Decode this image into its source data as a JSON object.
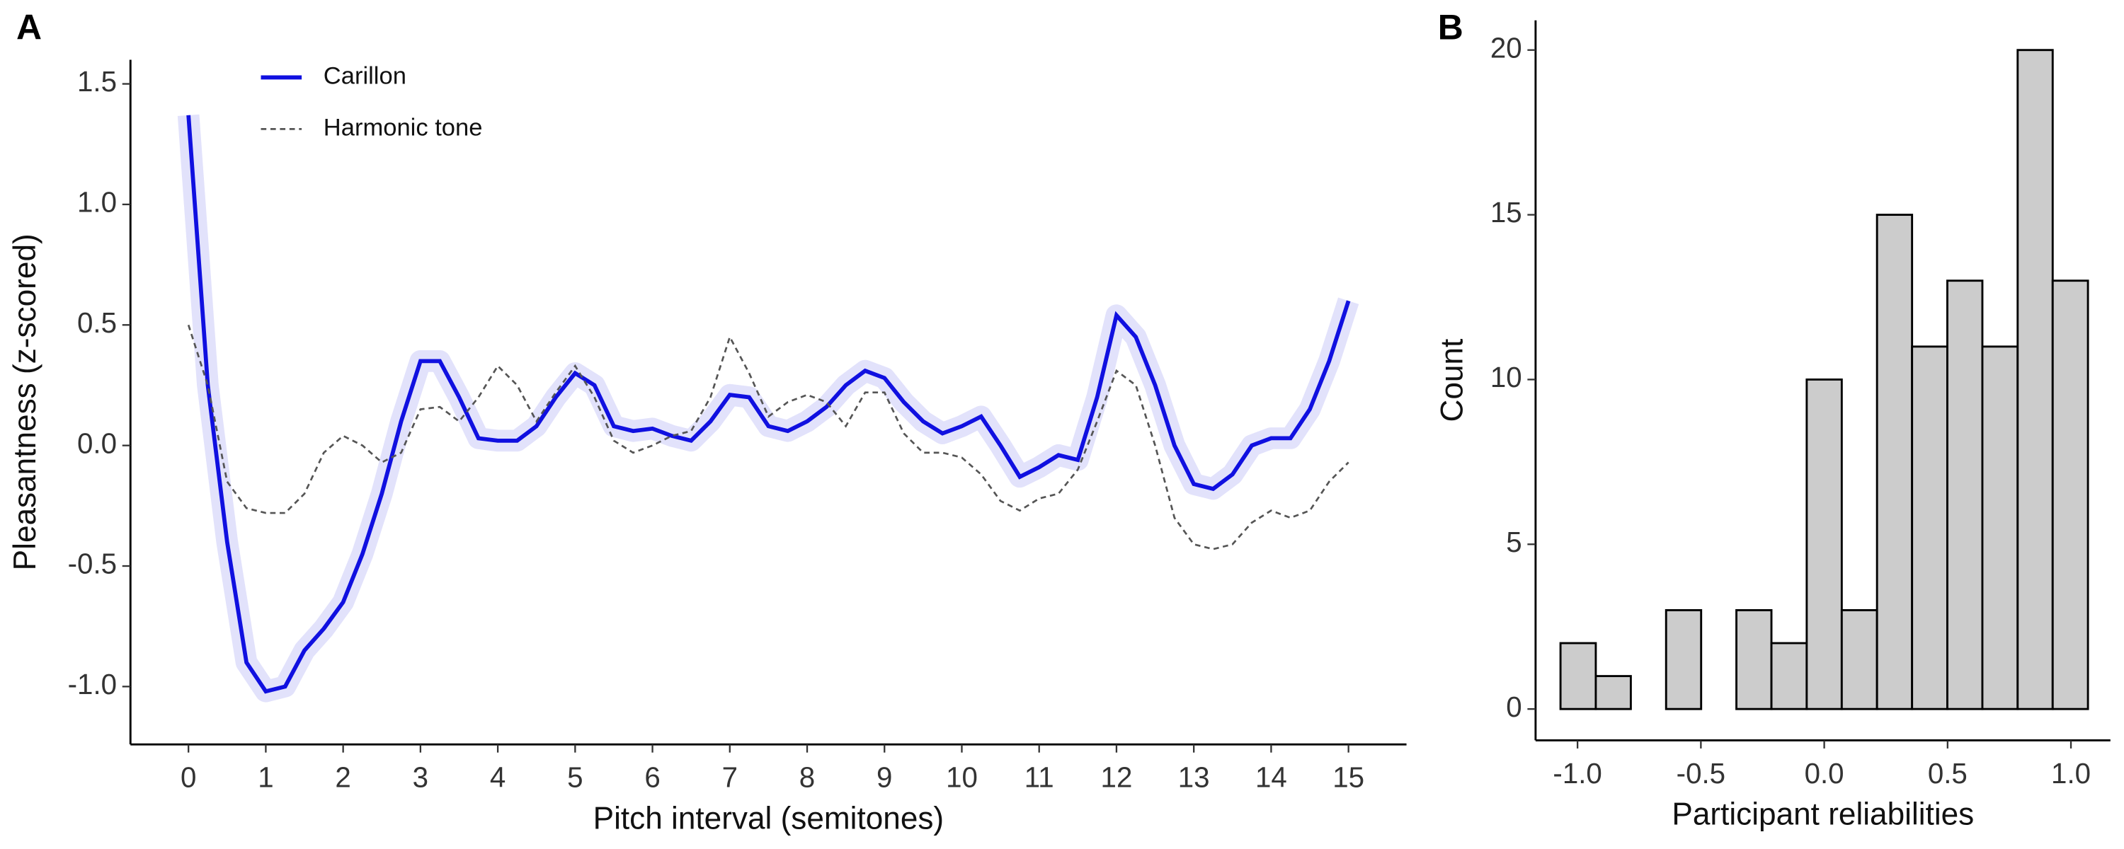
{
  "chart_data": [
    {
      "type": "line",
      "panel_label": "A",
      "x_label": "Pitch interval (semitones)",
      "y_label": "Pleasantness (z-scored)",
      "x": [
        0,
        0.25,
        0.5,
        0.75,
        1,
        1.25,
        1.5,
        1.75,
        2,
        2.25,
        2.5,
        2.75,
        3,
        3.25,
        3.5,
        3.75,
        4,
        4.25,
        4.5,
        4.75,
        5,
        5.25,
        5.5,
        5.75,
        6,
        6.25,
        6.5,
        6.75,
        7,
        7.25,
        7.5,
        7.75,
        8,
        8.25,
        8.5,
        8.75,
        9,
        9.25,
        9.5,
        9.75,
        10,
        10.25,
        10.5,
        10.75,
        11,
        11.25,
        11.5,
        11.75,
        12,
        12.25,
        12.5,
        12.75,
        13,
        13.25,
        13.5,
        13.75,
        14,
        14.25,
        14.5,
        14.75,
        15
      ],
      "series": [
        {
          "name": "Carillon",
          "color": "#1010e0",
          "linestyle": "solid",
          "ribbon": true,
          "values": [
            1.37,
            0.25,
            -0.4,
            -0.9,
            -1.02,
            -1.0,
            -0.85,
            -0.76,
            -0.65,
            -0.45,
            -0.2,
            0.1,
            0.35,
            0.35,
            0.2,
            0.03,
            0.02,
            0.02,
            0.08,
            0.2,
            0.3,
            0.25,
            0.08,
            0.06,
            0.07,
            0.04,
            0.02,
            0.1,
            0.21,
            0.2,
            0.08,
            0.06,
            0.1,
            0.16,
            0.25,
            0.31,
            0.28,
            0.18,
            0.1,
            0.05,
            0.08,
            0.12,
            0.0,
            -0.13,
            -0.09,
            -0.04,
            -0.06,
            0.2,
            0.54,
            0.45,
            0.25,
            0.0,
            -0.16,
            -0.18,
            -0.12,
            0.0,
            0.03,
            0.03,
            0.15,
            0.35,
            0.6
          ]
        },
        {
          "name": "Harmonic tone",
          "color": "#555555",
          "linestyle": "dashed",
          "ribbon": false,
          "values": [
            0.5,
            0.25,
            -0.15,
            -0.26,
            -0.28,
            -0.28,
            -0.2,
            -0.03,
            0.04,
            0.0,
            -0.07,
            -0.03,
            0.15,
            0.16,
            0.1,
            0.2,
            0.33,
            0.25,
            0.1,
            0.22,
            0.33,
            0.2,
            0.02,
            -0.03,
            0.0,
            0.04,
            0.06,
            0.2,
            0.45,
            0.3,
            0.12,
            0.18,
            0.21,
            0.18,
            0.08,
            0.22,
            0.22,
            0.05,
            -0.03,
            -0.03,
            -0.05,
            -0.12,
            -0.23,
            -0.27,
            -0.22,
            -0.2,
            -0.1,
            0.1,
            0.31,
            0.25,
            0.0,
            -0.3,
            -0.41,
            -0.43,
            -0.41,
            -0.32,
            -0.27,
            -0.3,
            -0.27,
            -0.15,
            -0.07
          ]
        }
      ],
      "xlim": [
        -0.75,
        15.75
      ],
      "xticks": [
        0,
        1,
        2,
        3,
        4,
        5,
        6,
        7,
        8,
        9,
        10,
        11,
        12,
        13,
        14,
        15
      ],
      "ylim": [
        -1.24,
        1.6
      ],
      "yticks": [
        {
          "value": -1,
          "label": "-1.0"
        },
        -0.5,
        {
          "value": 0,
          "label": "0.0"
        },
        0.5,
        {
          "value": 1,
          "label": "1.0"
        },
        1.5
      ],
      "grid": false,
      "legend": "top-left"
    },
    {
      "type": "histogram",
      "panel_label": "B",
      "x_label": "Participant reliabilities",
      "y_label": "Count",
      "bins": [
        -1.069,
        -0.926,
        -0.784,
        -0.641,
        -0.499,
        -0.356,
        -0.214,
        -0.071,
        0.071,
        0.214,
        0.356,
        0.499,
        0.641,
        0.784,
        0.926,
        1.069
      ],
      "values": [
        2,
        1,
        0,
        3,
        0,
        3,
        2,
        10,
        3,
        15,
        11,
        13,
        11,
        20,
        13
      ],
      "color": "#cccccc",
      "edgecolor": "#000000",
      "xlim": [
        -1.17,
        1.16
      ],
      "xticks": [
        {
          "value": -1,
          "label": "-1.0"
        },
        -0.5,
        {
          "value": 0,
          "label": "0.0"
        },
        0.5,
        {
          "value": 1,
          "label": "1.0"
        }
      ],
      "ylim": [
        -0.95,
        20.9
      ],
      "yticks": [
        0,
        5,
        10,
        15,
        20
      ],
      "grid": false
    }
  ]
}
